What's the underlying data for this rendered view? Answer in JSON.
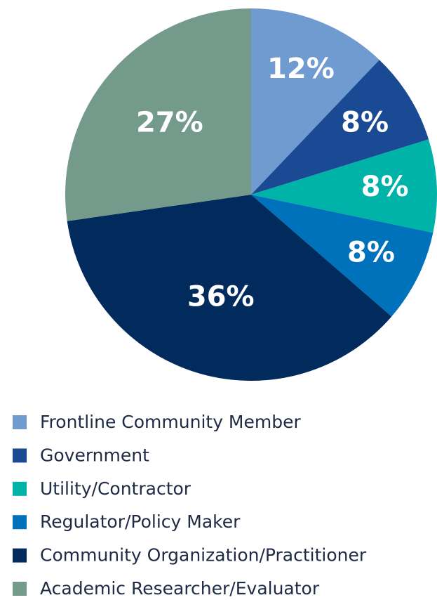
{
  "chart_data": {
    "type": "pie",
    "categories": [
      "Frontline Community Member",
      "Government",
      "Utility/Contractor",
      "Regulator/Policy Maker",
      "Community Organization/Practitioner",
      "Academic Researcher/Evaluator"
    ],
    "values": [
      12,
      8,
      8,
      8,
      36,
      27
    ],
    "value_labels": [
      "12%",
      "8%",
      "8%",
      "8%",
      "36%",
      "27%"
    ],
    "colors": [
      "#6f9bd1",
      "#1a4a93",
      "#00b3a8",
      "#0072bc",
      "#002b5c",
      "#739a8b"
    ],
    "legend": "bottom"
  }
}
